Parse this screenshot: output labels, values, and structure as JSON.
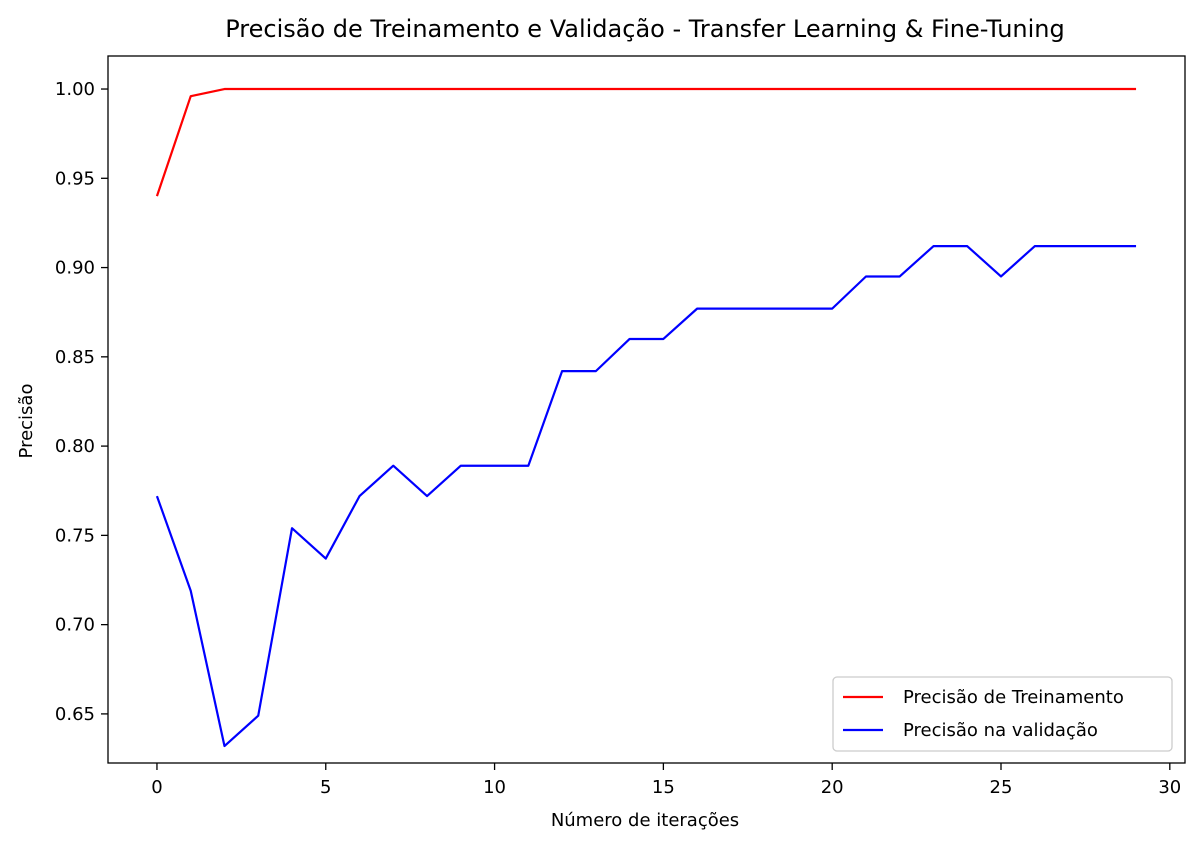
{
  "chart_data": {
    "type": "line",
    "title": "Precisão de Treinamento e Validação - Transfer Learning & Fine-Tuning",
    "xlabel": "Número de iterações",
    "ylabel": "Precisão",
    "xlim": [
      -1.45,
      30.45
    ],
    "ylim": [
      0.6225,
      1.0185
    ],
    "x_ticks": [
      "0",
      "5",
      "10",
      "15",
      "20",
      "25",
      "30"
    ],
    "y_ticks": [
      "0.65",
      "0.70",
      "0.75",
      "0.80",
      "0.85",
      "0.90",
      "0.95",
      "1.00"
    ],
    "grid": false,
    "legend_position": "lower right",
    "x": [
      0,
      1,
      2,
      3,
      4,
      5,
      6,
      7,
      8,
      9,
      10,
      11,
      12,
      13,
      14,
      15,
      16,
      17,
      18,
      19,
      20,
      21,
      22,
      23,
      24,
      25,
      26,
      27,
      28,
      29
    ],
    "series": [
      {
        "name": "Precisão de Treinamento",
        "color": "#ff0000",
        "values": [
          0.94,
          0.996,
          1.0,
          1.0,
          1.0,
          1.0,
          1.0,
          1.0,
          1.0,
          1.0,
          1.0,
          1.0,
          1.0,
          1.0,
          1.0,
          1.0,
          1.0,
          1.0,
          1.0,
          1.0,
          1.0,
          1.0,
          1.0,
          1.0,
          1.0,
          1.0,
          1.0,
          1.0,
          1.0,
          1.0
        ]
      },
      {
        "name": "Precisão na validação",
        "color": "#0000ff",
        "values": [
          0.772,
          0.719,
          0.632,
          0.649,
          0.754,
          0.737,
          0.772,
          0.789,
          0.772,
          0.789,
          0.789,
          0.789,
          0.842,
          0.842,
          0.86,
          0.86,
          0.877,
          0.877,
          0.877,
          0.877,
          0.877,
          0.895,
          0.895,
          0.912,
          0.912,
          0.895,
          0.912,
          0.912,
          0.912,
          0.912
        ]
      }
    ]
  }
}
